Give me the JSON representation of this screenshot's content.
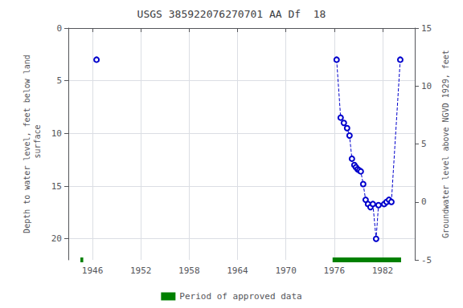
{
  "chart_data": {
    "type": "line",
    "title": "USGS 385922076270701 AA Df  18",
    "ylabel": "Depth to water level, feet below land\n surface",
    "y2label": "Groundwater level above NGVD 1929, feet",
    "series": [
      {
        "x": [
          1946.5
        ],
        "values": [
          3.0
        ],
        "color": "#0000cc",
        "marker": "circle",
        "line_style": "dashed"
      },
      {
        "x": [
          1976.3,
          1976.8,
          1977.2,
          1977.6,
          1977.9,
          1978.2,
          1978.5,
          1978.7,
          1978.9,
          1979.1,
          1979.3,
          1979.6,
          1979.9,
          1980.2,
          1980.5,
          1980.8,
          1981.2,
          1981.5
        ],
        "values": [
          3.0,
          8.5,
          9.0,
          9.5,
          10.2,
          12.4,
          13.0,
          13.2,
          13.4,
          13.5,
          13.6,
          14.8,
          16.3,
          16.7,
          17.0,
          16.7,
          20.0,
          16.8
        ],
        "color": "#0000cc",
        "marker": "circle",
        "line_style": "dashed"
      },
      {
        "x": [
          1982.2,
          1982.5,
          1982.8,
          1983.1,
          1984.2
        ],
        "values": [
          16.7,
          16.5,
          16.3,
          16.5,
          3.0
        ],
        "color": "#0000cc",
        "marker": "circle",
        "line_style": "dashed"
      }
    ],
    "xlim": [
      1943,
      1986
    ],
    "xticks": [
      1946,
      1952,
      1958,
      1964,
      1970,
      1976,
      1982
    ],
    "ylim": [
      22,
      0
    ],
    "yticks": [
      0,
      5,
      10,
      15,
      20
    ],
    "y2lim": [
      -5,
      15
    ],
    "y2ticks": [
      -5,
      0,
      5,
      10,
      15
    ],
    "grid": true,
    "legend": "bottom",
    "approved_periods": {
      "name": "Period of approved data",
      "color": "green",
      "y": 22,
      "start": [
        1944.5,
        1975.8
      ],
      "width": [
        0.35,
        8.5
      ]
    }
  }
}
